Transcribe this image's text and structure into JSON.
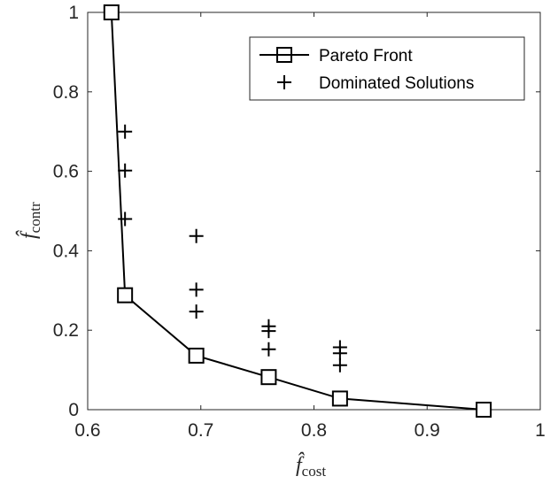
{
  "chart_data": {
    "type": "line",
    "title": "",
    "xlabel": {
      "main": "f̂",
      "sub": "cost"
    },
    "ylabel": {
      "main": "f̂",
      "sub": "contr"
    },
    "xlim": [
      0.6,
      1.0
    ],
    "ylim": [
      0,
      1.0
    ],
    "xticks": [
      0.6,
      0.7,
      0.8,
      0.9,
      1.0
    ],
    "xtick_labels": [
      "0.6",
      "0.7",
      "0.8",
      "0.9",
      "1"
    ],
    "yticks": [
      0,
      0.2,
      0.4,
      0.6,
      0.8,
      1.0
    ],
    "ytick_labels": [
      "0",
      "0.2",
      "0.4",
      "0.6",
      "0.8",
      "1"
    ],
    "grid": false,
    "legend_position": "top-right",
    "series": [
      {
        "name": "Pareto Front",
        "style": "line-square",
        "color": "#000000",
        "x": [
          0.621,
          0.633,
          0.696,
          0.76,
          0.823,
          0.95
        ],
        "y": [
          1.0,
          0.288,
          0.136,
          0.082,
          0.028,
          0.0
        ]
      },
      {
        "name": "Dominated Solutions",
        "style": "plus",
        "color": "#000000",
        "x": [
          0.633,
          0.633,
          0.633,
          0.696,
          0.696,
          0.696,
          0.76,
          0.76,
          0.76,
          0.823,
          0.823,
          0.823
        ],
        "y": [
          0.7,
          0.602,
          0.48,
          0.437,
          0.302,
          0.247,
          0.21,
          0.198,
          0.152,
          0.157,
          0.142,
          0.112
        ]
      }
    ]
  }
}
